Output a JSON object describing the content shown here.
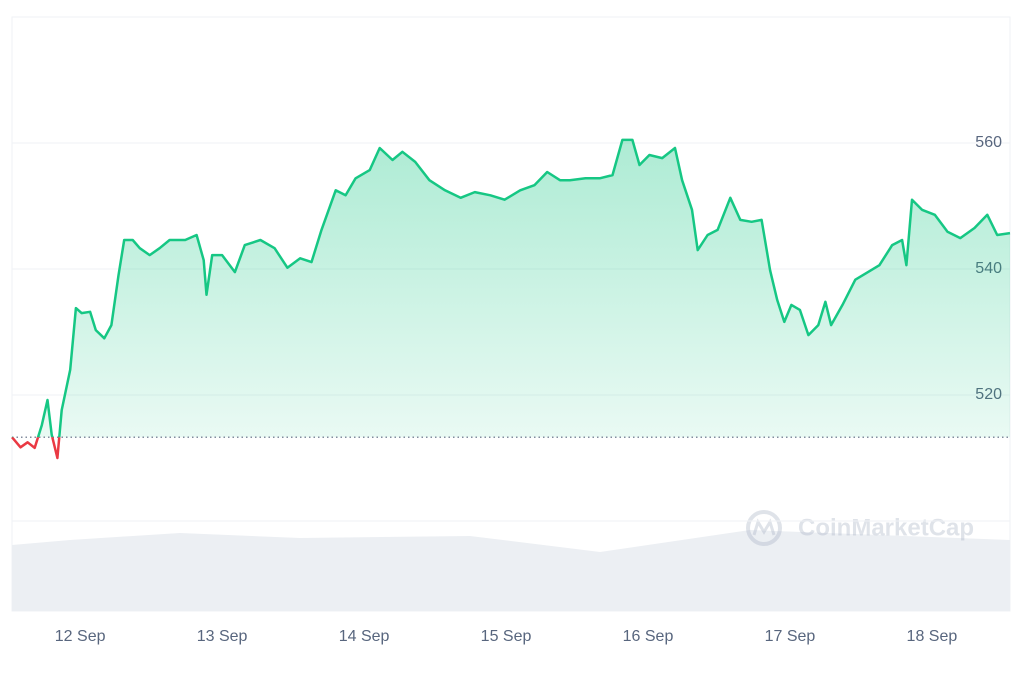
{
  "chart_data": {
    "type": "line",
    "x": [
      11.52,
      11.58,
      11.63,
      11.68,
      11.73,
      11.77,
      11.8,
      11.84,
      11.87,
      11.93,
      11.97,
      12.01,
      12.07,
      12.11,
      12.17,
      12.22,
      12.27,
      12.31,
      12.37,
      12.42,
      12.49,
      12.56,
      12.63,
      12.74,
      12.82,
      12.87,
      12.89,
      12.93,
      13.0,
      13.09,
      13.16,
      13.27,
      13.37,
      13.46,
      13.55,
      13.63,
      13.7,
      13.8,
      13.87,
      13.94,
      14.04,
      14.11,
      14.2,
      14.27,
      14.36,
      14.46,
      14.57,
      14.68,
      14.78,
      14.89,
      14.99,
      15.1,
      15.2,
      15.29,
      15.38,
      15.45,
      15.56,
      15.66,
      15.75,
      15.82,
      15.89,
      15.94,
      16.01,
      16.1,
      16.19,
      16.24,
      16.31,
      16.35,
      16.42,
      16.49,
      16.58,
      16.65,
      16.73,
      16.8,
      16.86,
      16.91,
      16.96,
      17.01,
      17.07,
      17.13,
      17.2,
      17.25,
      17.29,
      17.37,
      17.46,
      17.55,
      17.63,
      17.72,
      17.79,
      17.82,
      17.86,
      17.93,
      18.02,
      18.11,
      18.2,
      18.3,
      18.39,
      18.46,
      18.55
    ],
    "values": [
      513.3,
      511.7,
      512.5,
      511.6,
      515.2,
      519.2,
      513.7,
      510,
      517.6,
      524,
      533.8,
      533,
      533.2,
      530.3,
      529,
      531.1,
      539,
      544.6,
      544.6,
      543.3,
      542.2,
      543.3,
      544.6,
      544.6,
      545.4,
      541.4,
      535.9,
      542.2,
      542.2,
      539.5,
      543.8,
      544.6,
      543.3,
      540.2,
      541.7,
      541.1,
      546.2,
      552.5,
      551.7,
      554.4,
      555.7,
      559.2,
      557.3,
      558.6,
      557,
      554.1,
      552.5,
      551.3,
      552.2,
      551.7,
      551,
      552.5,
      553.3,
      555.4,
      554.1,
      554.1,
      554.4,
      554.4,
      554.9,
      560.5,
      560.5,
      556.5,
      558.1,
      557.6,
      559.2,
      554.1,
      549.4,
      543,
      545.4,
      546.2,
      551.3,
      547.8,
      547.5,
      547.8,
      539.8,
      535.1,
      531.6,
      534.3,
      533.5,
      529.5,
      531.1,
      534.8,
      531.1,
      534.3,
      538.3,
      539.5,
      540.6,
      543.8,
      544.6,
      540.6,
      551,
      549.4,
      548.6,
      545.9,
      544.9,
      546.5,
      548.6,
      545.4,
      545.7
    ],
    "baseline": 513.3,
    "color_up": "#16c784",
    "color_down": "#ea3943",
    "xlim": [
      11.52,
      18.55
    ],
    "xticks": [
      {
        "value": 12,
        "label": "12 Sep"
      },
      {
        "value": 13,
        "label": "13 Sep"
      },
      {
        "value": 14,
        "label": "14 Sep"
      },
      {
        "value": 15,
        "label": "15 Sep"
      },
      {
        "value": 16,
        "label": "16 Sep"
      },
      {
        "value": 17,
        "label": "17 Sep"
      },
      {
        "value": 18,
        "label": "18 Sep"
      }
    ],
    "ylim": [
      500,
      580
    ],
    "yticks": [
      520,
      540,
      560
    ],
    "grid": true,
    "watermark": "CoinMarketCap"
  }
}
